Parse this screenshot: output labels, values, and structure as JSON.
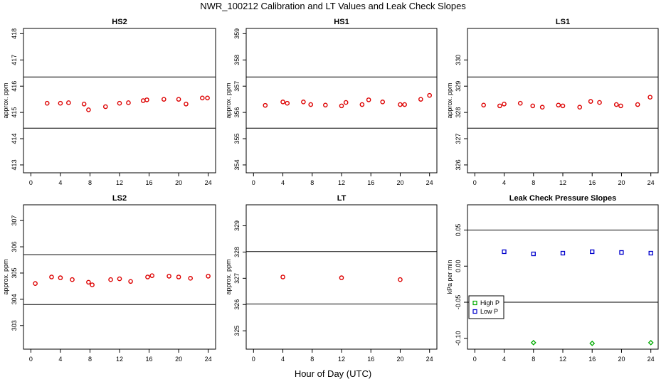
{
  "title": "NWR_100212  Calibration and LT Values and Leak Check Slopes",
  "xlabel": "Hour of Day (UTC)",
  "colors": {
    "calibration": "#dd0000",
    "high_p": "#00aa00",
    "low_p": "#0000cc",
    "lines": "#000000"
  },
  "chart_data": [
    {
      "type": "scatter",
      "title": "HS2",
      "ylabel": "approx. ppm",
      "xlim": [
        -1,
        25
      ],
      "ylim": [
        412.7,
        418.2
      ],
      "xticks": [
        0,
        4,
        8,
        12,
        16,
        20,
        24
      ],
      "yticks": [
        413,
        414,
        415,
        416,
        417,
        418
      ],
      "hlines": [
        416.35,
        414.4
      ],
      "series": [
        {
          "x": [
            2.2,
            4.0,
            5.1,
            7.2,
            7.8,
            10.1,
            12.0,
            13.2,
            15.2,
            15.7,
            18.0,
            20.0,
            21.0,
            23.2,
            23.9
          ],
          "y": [
            415.35,
            415.35,
            415.37,
            415.32,
            415.1,
            415.22,
            415.35,
            415.37,
            415.45,
            415.48,
            415.5,
            415.5,
            415.32,
            415.55,
            415.55
          ]
        }
      ]
    },
    {
      "type": "scatter",
      "title": "HS1",
      "ylabel": "approx. ppm",
      "xlim": [
        -1,
        25
      ],
      "ylim": [
        353.7,
        359.2
      ],
      "xticks": [
        0,
        4,
        8,
        12,
        16,
        20,
        24
      ],
      "yticks": [
        354,
        355,
        356,
        357,
        358,
        359
      ],
      "hlines": [
        357.35,
        355.4
      ],
      "series": [
        {
          "x": [
            1.6,
            4.0,
            4.6,
            6.8,
            7.8,
            9.8,
            12.0,
            12.6,
            14.8,
            15.7,
            17.6,
            20.0,
            20.6,
            22.8,
            24.0
          ],
          "y": [
            356.27,
            356.4,
            356.35,
            356.4,
            356.3,
            356.28,
            356.25,
            356.38,
            356.3,
            356.48,
            356.4,
            356.3,
            356.3,
            356.5,
            356.65
          ]
        }
      ]
    },
    {
      "type": "scatter",
      "title": "LS1",
      "ylabel": "approx. ppm",
      "xlim": [
        -1,
        25
      ],
      "ylim": [
        325.7,
        331.2
      ],
      "xticks": [
        0,
        4,
        8,
        12,
        16,
        20,
        24
      ],
      "yticks": [
        326,
        327,
        328,
        329,
        330
      ],
      "hlines": [
        329.35,
        327.4
      ],
      "series": [
        {
          "x": [
            1.2,
            3.4,
            4.0,
            6.2,
            7.9,
            9.2,
            11.4,
            12.0,
            14.3,
            15.8,
            17.0,
            19.3,
            19.9,
            22.2,
            23.9
          ],
          "y": [
            328.28,
            328.25,
            328.32,
            328.35,
            328.25,
            328.2,
            328.28,
            328.25,
            328.2,
            328.42,
            328.38,
            328.3,
            328.25,
            328.3,
            328.58
          ]
        }
      ]
    },
    {
      "type": "scatter",
      "title": "LS2",
      "ylabel": "approx. ppm",
      "xlim": [
        -1,
        25
      ],
      "ylim": [
        302.1,
        307.6
      ],
      "xticks": [
        0,
        4,
        8,
        12,
        16,
        20,
        24
      ],
      "yticks": [
        303,
        304,
        305,
        306,
        307
      ],
      "hlines": [
        305.7,
        303.8
      ],
      "series": [
        {
          "x": [
            0.6,
            2.8,
            4.0,
            5.6,
            7.8,
            8.3,
            10.8,
            12.0,
            13.5,
            15.8,
            16.4,
            18.7,
            20.0,
            21.6,
            24.0
          ],
          "y": [
            304.6,
            304.85,
            304.82,
            304.75,
            304.65,
            304.55,
            304.75,
            304.78,
            304.68,
            304.85,
            304.9,
            304.88,
            304.85,
            304.8,
            304.88
          ]
        }
      ]
    },
    {
      "type": "scatter",
      "title": "LT",
      "ylabel": "approx. ppm",
      "xlim": [
        -1,
        25
      ],
      "ylim": [
        324.3,
        329.8
      ],
      "xticks": [
        0,
        4,
        8,
        12,
        16,
        20,
        24
      ],
      "yticks": [
        325,
        326,
        327,
        328,
        329
      ],
      "hlines": [
        328.02,
        326.02
      ],
      "series": [
        {
          "x": [
            4.0,
            12.0,
            20.0
          ],
          "y": [
            327.05,
            327.02,
            326.95
          ]
        }
      ]
    },
    {
      "type": "scatter",
      "title": "Leak Check Pressure Slopes",
      "ylabel": "kPa per min",
      "xlim": [
        -1,
        25
      ],
      "ylim": [
        -0.115,
        0.085
      ],
      "xticks": [
        0,
        4,
        8,
        12,
        16,
        20,
        24
      ],
      "yticks": [
        -0.1,
        -0.05,
        0.0,
        0.05
      ],
      "ytick_labels": [
        "-0.10",
        "-0.05",
        "0.00",
        "0.05"
      ],
      "hlines": [
        0.05,
        -0.05
      ],
      "legend": "bottom-left",
      "series": [
        {
          "name": "High P",
          "color_key": "high_p",
          "x": [
            8.0,
            16.0,
            24.0
          ],
          "y": [
            -0.106,
            -0.107,
            -0.106
          ]
        },
        {
          "name": "Low P",
          "color_key": "low_p",
          "x": [
            4.0,
            8.0,
            12.0,
            16.0,
            20.0,
            24.0
          ],
          "y": [
            0.02,
            0.017,
            0.018,
            0.02,
            0.019,
            0.018
          ]
        }
      ]
    }
  ]
}
